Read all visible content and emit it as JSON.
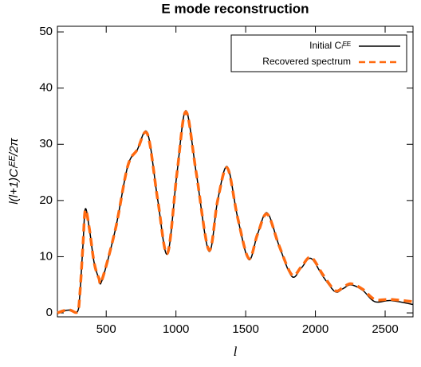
{
  "chart_data": {
    "type": "line",
    "title": "E mode reconstruction",
    "x_label": "l",
    "y_label": "l(l+1)Cₗᴱᴱ/2π",
    "xlim": [
      150,
      2700
    ],
    "ylim": [
      -0.7,
      51
    ],
    "xticks": [
      500,
      1000,
      1500,
      2000,
      2500
    ],
    "yticks": [
      0,
      10,
      20,
      30,
      40,
      50
    ],
    "legend_position": "upper right",
    "x": [
      150,
      196,
      241,
      293,
      310,
      333,
      350,
      379,
      413,
      447,
      470,
      567,
      653,
      722,
      796,
      870,
      939,
      1008,
      1071,
      1145,
      1236,
      1299,
      1368,
      1442,
      1522,
      1585,
      1654,
      1739,
      1831,
      1899,
      1968,
      2054,
      2140,
      2197,
      2254,
      2340,
      2426,
      2540,
      2700
    ],
    "series": [
      {
        "name": "Initial Cₗᴱᴱ",
        "color": "#000000",
        "dash": false,
        "values": [
          0,
          0.4,
          0.5,
          0.2,
          3,
          12,
          18.5,
          15,
          9,
          6.2,
          5.8,
          15,
          26,
          29,
          32,
          20,
          10.5,
          25,
          36,
          25,
          11,
          20,
          26,
          17,
          9.5,
          14,
          17.8,
          12,
          6.5,
          8,
          9.7,
          6.5,
          3.8,
          4.3,
          5,
          4,
          2,
          2.2,
          1.5
        ]
      },
      {
        "name": "Recovered spectrum",
        "color": "#ff6a10",
        "dash": true,
        "values": [
          0,
          0.4,
          0.5,
          0.2,
          3,
          12,
          18.3,
          15,
          9,
          6.2,
          5.9,
          15,
          26,
          29,
          31.8,
          20,
          10.6,
          25,
          35.8,
          25,
          11.2,
          20,
          25.8,
          17,
          9.7,
          14,
          17.6,
          12,
          6.8,
          8.2,
          9.9,
          6.8,
          4,
          4.5,
          5.2,
          4.2,
          2.4,
          2.4,
          2
        ]
      }
    ]
  }
}
